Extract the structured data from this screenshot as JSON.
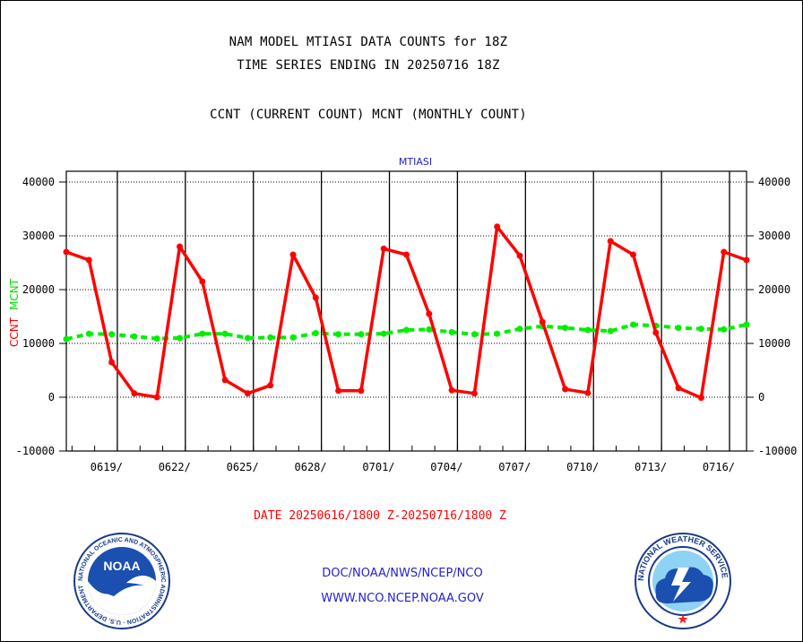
{
  "header": {
    "title_line1": "NAM MODEL MTIASI DATA COUNTS for 18Z",
    "title_line2": "TIME SERIES ENDING IN 20250716 18Z",
    "title_line3": "CCNT (CURRENT COUNT) MCNT (MONTHLY COUNT)"
  },
  "chart_data": {
    "type": "line",
    "title": "MTIASI",
    "ylabel_ccnt": "CCNT",
    "ylabel_mcnt": "MCNT",
    "xlabel": "DATE 20250616/1800 Z-20250716/1800 Z",
    "ylim": [
      -10000,
      40000
    ],
    "yticks": [
      -10000,
      0,
      10000,
      20000,
      30000,
      40000
    ],
    "ytick_labels": [
      "-10000",
      "0",
      "10000",
      "20000",
      "30000",
      "40000"
    ],
    "xlim": [
      0,
      30
    ],
    "xticks": [
      {
        "pos": 2.25,
        "label": "0619/"
      },
      {
        "pos": 5.25,
        "label": "0622/"
      },
      {
        "pos": 8.25,
        "label": "0625/"
      },
      {
        "pos": 11.25,
        "label": "0628/"
      },
      {
        "pos": 14.25,
        "label": "0701/"
      },
      {
        "pos": 17.25,
        "label": "0704/"
      },
      {
        "pos": 20.25,
        "label": "0707/"
      },
      {
        "pos": 23.25,
        "label": "0710/"
      },
      {
        "pos": 26.25,
        "label": "0713/"
      },
      {
        "pos": 29.25,
        "label": "0716/"
      }
    ],
    "grid": true,
    "series": [
      {
        "name": "CCNT",
        "color": "#ff0000",
        "style": "solid",
        "x": [
          0,
          1,
          2,
          3,
          4,
          5,
          6,
          7,
          8,
          9,
          10,
          11,
          12,
          13,
          14,
          15,
          16,
          17,
          18,
          19,
          20,
          21,
          22,
          23,
          24,
          25,
          26,
          27,
          28,
          29,
          30
        ],
        "values": [
          27000,
          25500,
          6500,
          700,
          0,
          28000,
          21500,
          3200,
          700,
          2200,
          26500,
          18500,
          1200,
          1200,
          27600,
          26500,
          15500,
          1300,
          700,
          31700,
          26300,
          14000,
          1500,
          800,
          29000,
          26500,
          12000,
          1700,
          -100,
          27000,
          25500
        ]
      },
      {
        "name": "MCNT",
        "color": "#00ee00",
        "style": "dashed",
        "x": [
          0,
          1,
          2,
          3,
          4,
          5,
          6,
          7,
          8,
          9,
          10,
          11,
          12,
          13,
          14,
          15,
          16,
          17,
          18,
          19,
          20,
          21,
          22,
          23,
          24,
          25,
          26,
          27,
          28,
          29,
          30
        ],
        "values": [
          10800,
          11800,
          11700,
          11300,
          10900,
          11000,
          11800,
          11800,
          11000,
          11100,
          11100,
          11900,
          11700,
          11700,
          11800,
          12500,
          12600,
          12100,
          11700,
          11800,
          12700,
          13200,
          12900,
          12500,
          12300,
          13500,
          13300,
          12900,
          12700,
          12600,
          13500
        ]
      }
    ]
  },
  "footer": {
    "line1": "DOC/NOAA/NWS/NCEP/NCO",
    "line2": "WWW.NCO.NCEP.NOAA.GOV"
  },
  "logos": {
    "noaa_text": "NOAA",
    "noaa_ring": "NATIONAL OCEANIC AND ATMOSPHERIC ADMINISTRATION · U.S. DEPARTMENT OF COMMERCE ·",
    "nws_ring": "NATIONAL WEATHER SERVICE"
  },
  "colors": {
    "title_blue": "#2222cc",
    "axis_red": "#ff0000",
    "axis_green": "#00dd00",
    "ccnt": "#ff0000",
    "mcnt": "#00ee00"
  }
}
